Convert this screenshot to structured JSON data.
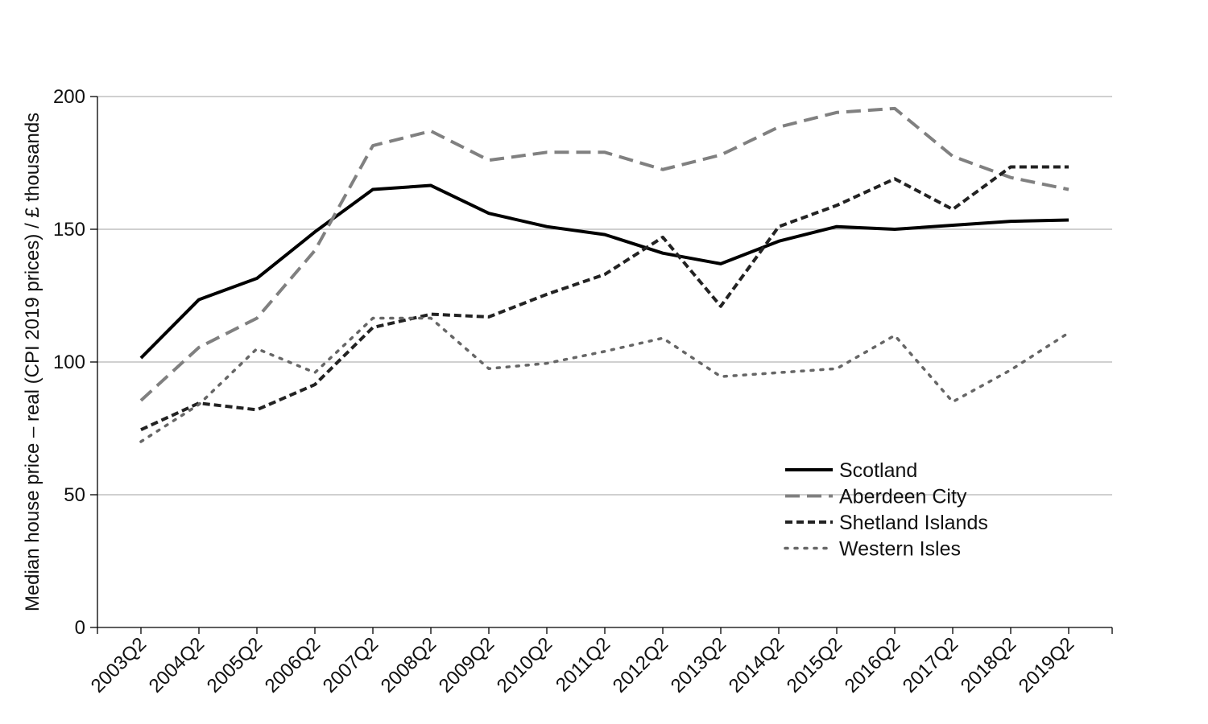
{
  "chart_data": {
    "type": "line",
    "title": "",
    "xlabel": "",
    "ylabel": "Median house price – real (CPI 2019 prices) / £ thousands",
    "ylim": [
      0,
      200
    ],
    "yticks": [
      0,
      50,
      100,
      150,
      200
    ],
    "grid": "horizontal",
    "legend_position": "lower-right",
    "categories": [
      "2003Q2",
      "2004Q2",
      "2005Q2",
      "2006Q2",
      "2007Q2",
      "2008Q2",
      "2009Q2",
      "2010Q2",
      "2011Q2",
      "2012Q2",
      "2013Q2",
      "2014Q2",
      "2015Q2",
      "2016Q2",
      "2017Q2",
      "2018Q2",
      "2019Q2"
    ],
    "series": [
      {
        "name": "Scotland",
        "style": "solid",
        "color": "#000000",
        "values": [
          101.5,
          123.5,
          131.5,
          149,
          165,
          166.5,
          156,
          151,
          148,
          141,
          137,
          145.5,
          151,
          150,
          151.5,
          153,
          153.5
        ]
      },
      {
        "name": "Aberdeen City",
        "style": "long-dash",
        "color": "#808080",
        "values": [
          85.5,
          105.5,
          116.5,
          142,
          181.5,
          187,
          176,
          179,
          179,
          172.5,
          178,
          188.5,
          194,
          195.5,
          177.5,
          169.5,
          165
        ]
      },
      {
        "name": "Shetland Islands",
        "style": "short-dash",
        "color": "#222222",
        "values": [
          74.5,
          84.5,
          82,
          91.5,
          113,
          118,
          117,
          125.5,
          133,
          147,
          121,
          151,
          159,
          169,
          157.5,
          173.5,
          173.5
        ]
      },
      {
        "name": "Western Isles",
        "style": "dotted",
        "color": "#666666",
        "values": [
          70,
          84,
          105,
          96,
          116.5,
          116.5,
          97.5,
          99.5,
          104,
          109,
          94.5,
          96,
          97.5,
          110,
          85,
          97,
          111
        ]
      }
    ]
  }
}
